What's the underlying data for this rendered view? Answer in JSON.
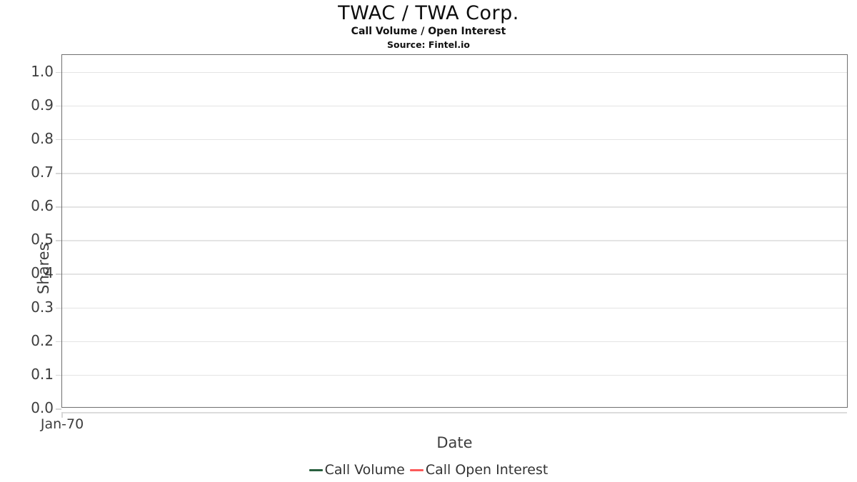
{
  "chart_data": {
    "type": "line",
    "title": "TWAC / TWA Corp.",
    "subtitle": "Call Volume / Open Interest",
    "source": "Source: Fintel.io",
    "xlabel": "Date",
    "ylabel": "Shares",
    "x_tick_labels": [
      "Jan-70"
    ],
    "y_ticks": [
      0.0,
      0.1,
      0.2,
      0.3,
      0.4,
      0.5,
      0.6,
      0.7,
      0.8,
      0.9,
      1.0
    ],
    "y_tick_labels": [
      "0.0",
      "0.1",
      "0.2",
      "0.3",
      "0.4",
      "0.5",
      "0.6",
      "0.7",
      "0.8",
      "0.9",
      "1.0"
    ],
    "ylim": [
      0,
      1.05
    ],
    "grid": "horizontal",
    "legend_position": "bottom",
    "series": [
      {
        "name": "Call Volume",
        "color": "#29603f",
        "values": []
      },
      {
        "name": "Call Open Interest",
        "color": "#fb5a5a",
        "values": []
      }
    ],
    "colors": {
      "plot_border": "#6f6f6f",
      "gridline": "#e4e4e4",
      "axis_line": "#dcdcdc",
      "text": "#3d3d3d",
      "title_text": "#0d0d0d"
    }
  }
}
